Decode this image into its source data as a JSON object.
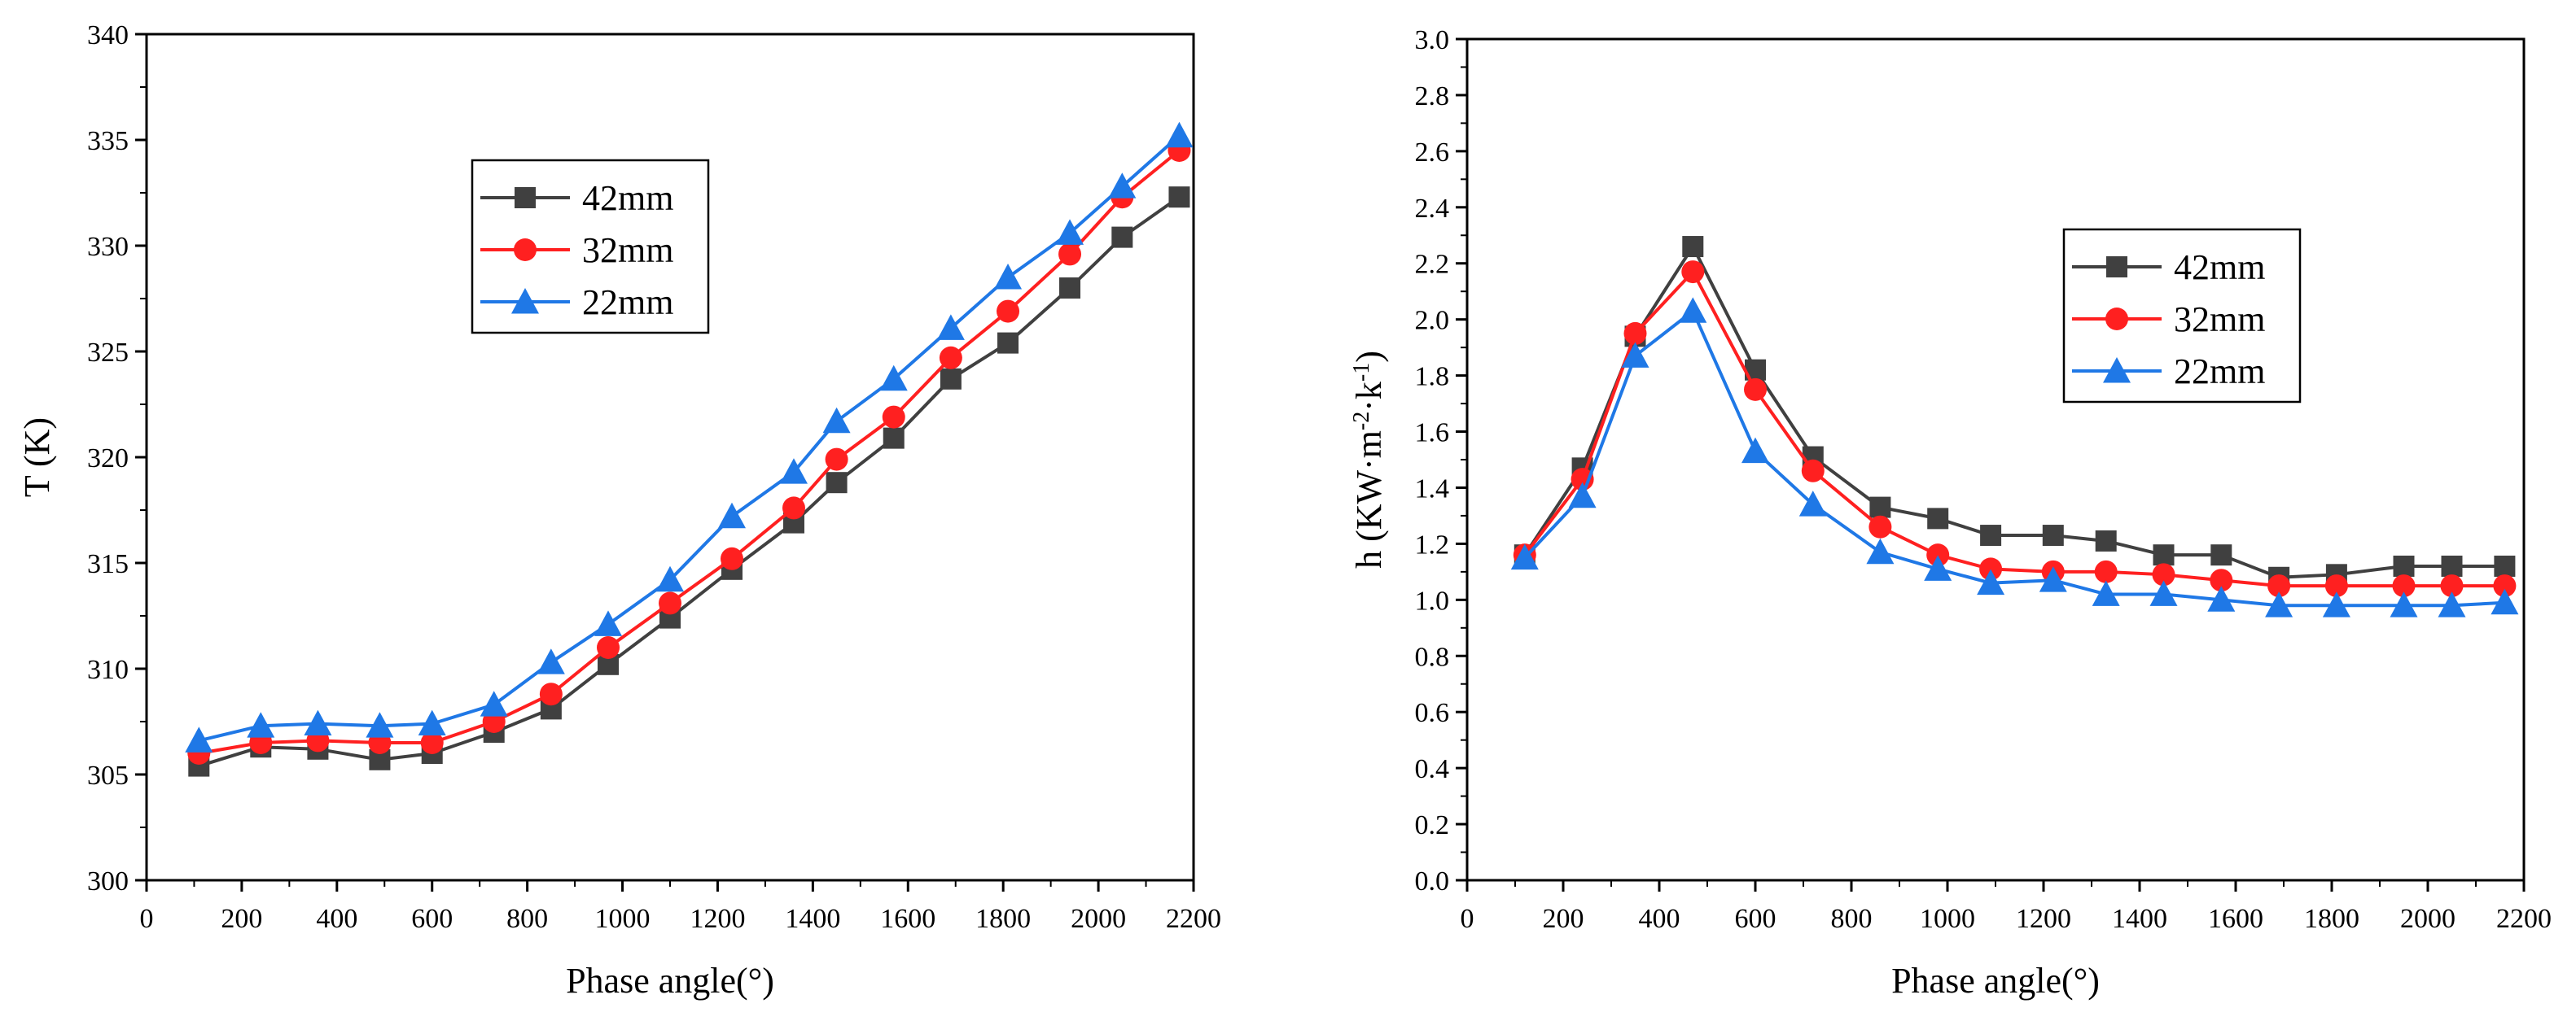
{
  "chart_data": [
    {
      "type": "line",
      "title": "",
      "xlabel": "Phase angle(°)",
      "ylabel": "T (K)",
      "ylabel_html": "",
      "xlim": [
        0,
        2200
      ],
      "ylim": [
        300,
        340
      ],
      "xticks": [
        0,
        200,
        400,
        600,
        800,
        1000,
        1200,
        1400,
        1600,
        1800,
        2000,
        2200
      ],
      "yticks": [
        300,
        305,
        310,
        315,
        320,
        325,
        330,
        335,
        340
      ],
      "ytick_decimals": 0,
      "grid": false,
      "legend_position": "upper-center",
      "series": [
        {
          "name": "42mm",
          "color": "#404040",
          "marker": "square",
          "x": [
            110,
            240,
            360,
            490,
            600,
            730,
            850,
            970,
            1100,
            1230,
            1360,
            1450,
            1570,
            1690,
            1810,
            1940,
            2050,
            2170
          ],
          "values": [
            305.4,
            306.3,
            306.2,
            305.7,
            306.0,
            307.0,
            308.1,
            310.2,
            312.4,
            314.7,
            316.9,
            318.8,
            320.9,
            323.7,
            325.4,
            328.0,
            330.4,
            332.3
          ]
        },
        {
          "name": "32mm",
          "color": "#ff2020",
          "marker": "circle",
          "x": [
            110,
            240,
            360,
            490,
            600,
            730,
            850,
            970,
            1100,
            1230,
            1360,
            1450,
            1570,
            1690,
            1810,
            1940,
            2050,
            2170
          ],
          "values": [
            306.0,
            306.5,
            306.6,
            306.5,
            306.5,
            307.5,
            308.8,
            311.0,
            313.1,
            315.2,
            317.6,
            319.9,
            321.9,
            324.7,
            326.9,
            329.6,
            332.3,
            334.5
          ]
        },
        {
          "name": "22mm",
          "color": "#1f78e6",
          "marker": "triangle",
          "x": [
            110,
            240,
            360,
            490,
            600,
            730,
            850,
            970,
            1100,
            1230,
            1360,
            1450,
            1570,
            1690,
            1810,
            1940,
            2050,
            2170
          ],
          "values": [
            306.6,
            307.3,
            307.4,
            307.3,
            307.4,
            308.3,
            310.3,
            312.1,
            314.2,
            317.2,
            319.3,
            321.7,
            323.7,
            326.1,
            328.5,
            330.6,
            332.8,
            335.2
          ]
        }
      ]
    },
    {
      "type": "line",
      "title": "",
      "xlabel": "Phase angle(°)",
      "ylabel": "",
      "ylabel_parts": [
        "h (KW·m",
        "-2",
        "·k",
        "-1",
        ")"
      ],
      "xlim": [
        0,
        2200
      ],
      "ylim": [
        0.0,
        3.0
      ],
      "xticks": [
        0,
        200,
        400,
        600,
        800,
        1000,
        1200,
        1400,
        1600,
        1800,
        2000,
        2200
      ],
      "yticks": [
        0.0,
        0.2,
        0.4,
        0.6,
        0.8,
        1.0,
        1.2,
        1.4,
        1.6,
        1.8,
        2.0,
        2.2,
        2.4,
        2.6,
        2.8,
        3.0
      ],
      "ytick_decimals": 1,
      "grid": false,
      "legend_position": "upper-right",
      "series": [
        {
          "name": "42mm",
          "color": "#404040",
          "marker": "square",
          "x": [
            120,
            240,
            350,
            470,
            600,
            720,
            860,
            980,
            1090,
            1220,
            1330,
            1450,
            1570,
            1690,
            1810,
            1950,
            2050,
            2160
          ],
          "values": [
            1.16,
            1.47,
            1.94,
            2.26,
            1.82,
            1.51,
            1.33,
            1.29,
            1.23,
            1.23,
            1.21,
            1.16,
            1.16,
            1.08,
            1.09,
            1.12,
            1.12,
            1.12
          ]
        },
        {
          "name": "32mm",
          "color": "#ff2020",
          "marker": "circle",
          "x": [
            120,
            240,
            350,
            470,
            600,
            720,
            860,
            980,
            1090,
            1220,
            1330,
            1450,
            1570,
            1690,
            1810,
            1950,
            2050,
            2160
          ],
          "values": [
            1.16,
            1.43,
            1.95,
            2.17,
            1.75,
            1.46,
            1.26,
            1.16,
            1.11,
            1.1,
            1.1,
            1.09,
            1.07,
            1.05,
            1.05,
            1.05,
            1.05,
            1.05
          ]
        },
        {
          "name": "22mm",
          "color": "#1f78e6",
          "marker": "triangle",
          "x": [
            120,
            240,
            350,
            470,
            600,
            720,
            860,
            980,
            1090,
            1220,
            1330,
            1450,
            1570,
            1690,
            1810,
            1950,
            2050,
            2160
          ],
          "values": [
            1.15,
            1.37,
            1.87,
            2.03,
            1.53,
            1.34,
            1.17,
            1.11,
            1.06,
            1.07,
            1.02,
            1.02,
            1.0,
            0.98,
            0.98,
            0.98,
            0.98,
            0.99
          ]
        }
      ]
    }
  ]
}
